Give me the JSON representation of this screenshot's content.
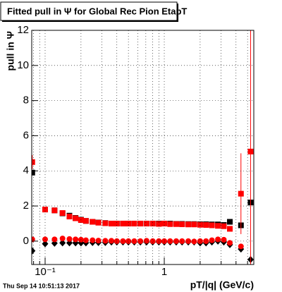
{
  "chart_data": {
    "type": "scatter",
    "title": "Fitted pull in Ψ  for Global Rec Pion EtapT",
    "y_label": "pull in Ψ",
    "x_label": "pT/|q| (GeV/c)",
    "footer": "Thu Sep 14 10:51:13 2017",
    "log_x": true,
    "grid": true,
    "xlim": [
      0.0772,
      5.64
    ],
    "ylim": [
      -1.33,
      12
    ],
    "xticks": [
      {
        "value": 0.1,
        "label": "10⁻¹"
      },
      1
    ],
    "xminorticks": [
      0.08,
      0.09,
      0.2,
      0.3,
      0.4,
      0.5,
      0.6,
      0.7,
      0.8,
      0.9,
      2,
      3,
      4,
      5
    ],
    "yticks": [
      0,
      2,
      4,
      6,
      8,
      10,
      12
    ],
    "x": [
      0.078,
      0.1,
      0.12,
      0.14,
      0.16,
      0.18,
      0.2,
      0.22,
      0.25,
      0.28,
      0.32,
      0.36,
      0.4,
      0.45,
      0.5,
      0.56,
      0.63,
      0.71,
      0.8,
      0.9,
      1.0,
      1.12,
      1.26,
      1.41,
      1.59,
      1.78,
      2.0,
      2.24,
      2.51,
      2.82,
      3.16,
      3.55,
      4.4,
      5.3
    ],
    "series": [
      {
        "color": "#000000",
        "marker": "square",
        "values": [
          3.9,
          1.8,
          1.75,
          1.58,
          1.45,
          1.32,
          1.22,
          1.15,
          1.1,
          1.06,
          1.03,
          1.0,
          1.0,
          1.0,
          1.0,
          1.0,
          1.0,
          1.0,
          1.0,
          1.0,
          1.0,
          1.0,
          0.98,
          0.98,
          0.97,
          0.97,
          0.96,
          0.96,
          0.95,
          0.95,
          0.92,
          1.1,
          0.9,
          2.2
        ]
      },
      {
        "color": "#000000",
        "marker": "diamond",
        "values": [
          -0.55,
          -0.15,
          -0.12,
          -0.1,
          -0.1,
          -0.1,
          -0.1,
          -0.1,
          -0.08,
          -0.08,
          -0.08,
          -0.05,
          -0.05,
          -0.05,
          -0.05,
          -0.05,
          -0.05,
          -0.05,
          -0.05,
          -0.05,
          -0.05,
          -0.05,
          -0.05,
          -0.05,
          -0.05,
          -0.05,
          -0.1,
          -0.1,
          -0.05,
          0.0,
          -0.05,
          -0.2,
          -0.45,
          -1.05
        ]
      },
      {
        "color": "#ff0000",
        "marker": "circle",
        "values": [
          0.1,
          0.1,
          0.1,
          0.15,
          0.12,
          0.1,
          0.08,
          0.05,
          0.05,
          0.03,
          0.02,
          0.02,
          0.0,
          0.0,
          0.0,
          0.0,
          0.0,
          0.02,
          0.0,
          0.0,
          0.0,
          0.0,
          0.0,
          0.0,
          0.0,
          -0.02,
          0.0,
          0.0,
          0.05,
          0.1,
          0.08,
          -0.1,
          -0.3,
          null
        ]
      },
      {
        "color": "#ff0000",
        "marker": "square",
        "values": [
          4.5,
          1.8,
          1.75,
          1.6,
          1.4,
          1.3,
          1.2,
          1.15,
          1.1,
          1.05,
          1.02,
          1.0,
          1.0,
          1.0,
          1.0,
          1.0,
          1.0,
          1.0,
          1.0,
          0.98,
          1.0,
          0.97,
          0.97,
          0.96,
          0.95,
          0.95,
          0.93,
          0.92,
          0.9,
          0.87,
          0.85,
          0.7,
          2.7,
          5.1
        ],
        "errors": [
          0.4,
          0.05,
          0.05,
          0.05,
          0.05,
          0.05,
          0.05,
          0.05,
          0.05,
          0.05,
          0.05,
          0.05,
          0.05,
          0.05,
          0.05,
          0.05,
          0.05,
          0.05,
          0.05,
          0.05,
          0.05,
          0.05,
          0.05,
          0.05,
          0.05,
          0.05,
          0.05,
          0.05,
          0.05,
          0.05,
          0.05,
          0.1,
          2.3,
          7
        ]
      }
    ]
  }
}
